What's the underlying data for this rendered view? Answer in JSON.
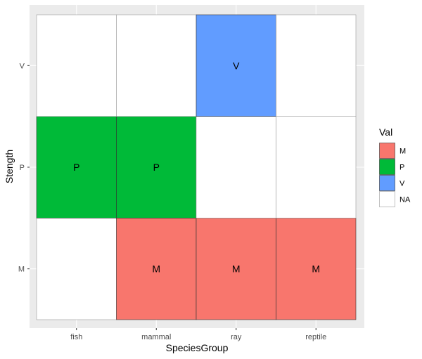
{
  "chart_data": {
    "type": "heatmap",
    "xlabel": "SpeciesGroup",
    "ylabel": "Stength",
    "x_categories": [
      "fish",
      "mammal",
      "ray",
      "reptile"
    ],
    "y_categories": [
      "M",
      "P",
      "V"
    ],
    "cells": [
      {
        "x": "fish",
        "y": "M",
        "value": null,
        "label": ""
      },
      {
        "x": "mammal",
        "y": "M",
        "value": "M",
        "label": "M"
      },
      {
        "x": "ray",
        "y": "M",
        "value": "M",
        "label": "M"
      },
      {
        "x": "reptile",
        "y": "M",
        "value": "M",
        "label": "M"
      },
      {
        "x": "fish",
        "y": "P",
        "value": "P",
        "label": "P"
      },
      {
        "x": "mammal",
        "y": "P",
        "value": "P",
        "label": "P"
      },
      {
        "x": "ray",
        "y": "P",
        "value": null,
        "label": ""
      },
      {
        "x": "reptile",
        "y": "P",
        "value": null,
        "label": ""
      },
      {
        "x": "fish",
        "y": "V",
        "value": null,
        "label": ""
      },
      {
        "x": "mammal",
        "y": "V",
        "value": null,
        "label": ""
      },
      {
        "x": "ray",
        "y": "V",
        "value": "V",
        "label": "V"
      },
      {
        "x": "reptile",
        "y": "V",
        "value": null,
        "label": ""
      }
    ],
    "legend": {
      "title": "Val",
      "position": "right",
      "entries": [
        {
          "key": "M",
          "label": "M",
          "color": "#F8766D"
        },
        {
          "key": "P",
          "label": "P",
          "color": "#00BA38"
        },
        {
          "key": "V",
          "label": "V",
          "color": "#619CFF"
        },
        {
          "key": "NA",
          "label": "NA",
          "color": "#FFFFFF"
        }
      ]
    },
    "panel_background": "#EBEBEB",
    "grid_color": "#FFFFFF",
    "grid": true
  }
}
